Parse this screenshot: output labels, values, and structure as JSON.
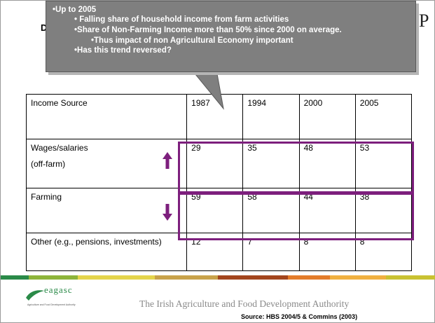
{
  "slide": {
    "title_fragment": "D",
    "title_tail": "P"
  },
  "callout": {
    "lines": [
      "•Up to 2005",
      "•  Falling share of household income from farm activities",
      "•Share of Non-Farming Income more than 50% since 2000 on average.",
      "•Thus impact of non Agricultural Economy important",
      "•Has this trend reversed?"
    ]
  },
  "table": {
    "header": [
      "Income Source",
      "1987",
      "1994",
      "2000",
      "2005"
    ],
    "rows": [
      {
        "label": "Wages/salaries",
        "sublabel": "(off-farm)",
        "values": [
          "29",
          "35",
          "48",
          "53"
        ],
        "trend": "up-arrow"
      },
      {
        "label": "Farming",
        "sublabel": "",
        "values": [
          "59",
          "58",
          "44",
          "38"
        ],
        "trend": "down-arrow"
      },
      {
        "label": "Other (e.g., pensions, investments)",
        "sublabel": "",
        "values": [
          "12",
          "7",
          "8",
          "8"
        ],
        "trend": ""
      }
    ]
  },
  "colors": {
    "highlight": "#7d1f7d",
    "arrow": "#7d1f7d",
    "callout_bg": "#7f7f7f",
    "band": [
      "#2a8a48",
      "#8db43a",
      "#e4d44b",
      "#c8a24a",
      "#a3451d",
      "#e37c2a",
      "#f0b040"
    ]
  },
  "footer": {
    "logo_text": "eagasc",
    "logo_subtext": "Agriculture and Food Development Authority",
    "authority": "The Irish Agriculture and Food Development Authority",
    "source": "Source: HBS 2004/5 & Commins (2003)"
  }
}
